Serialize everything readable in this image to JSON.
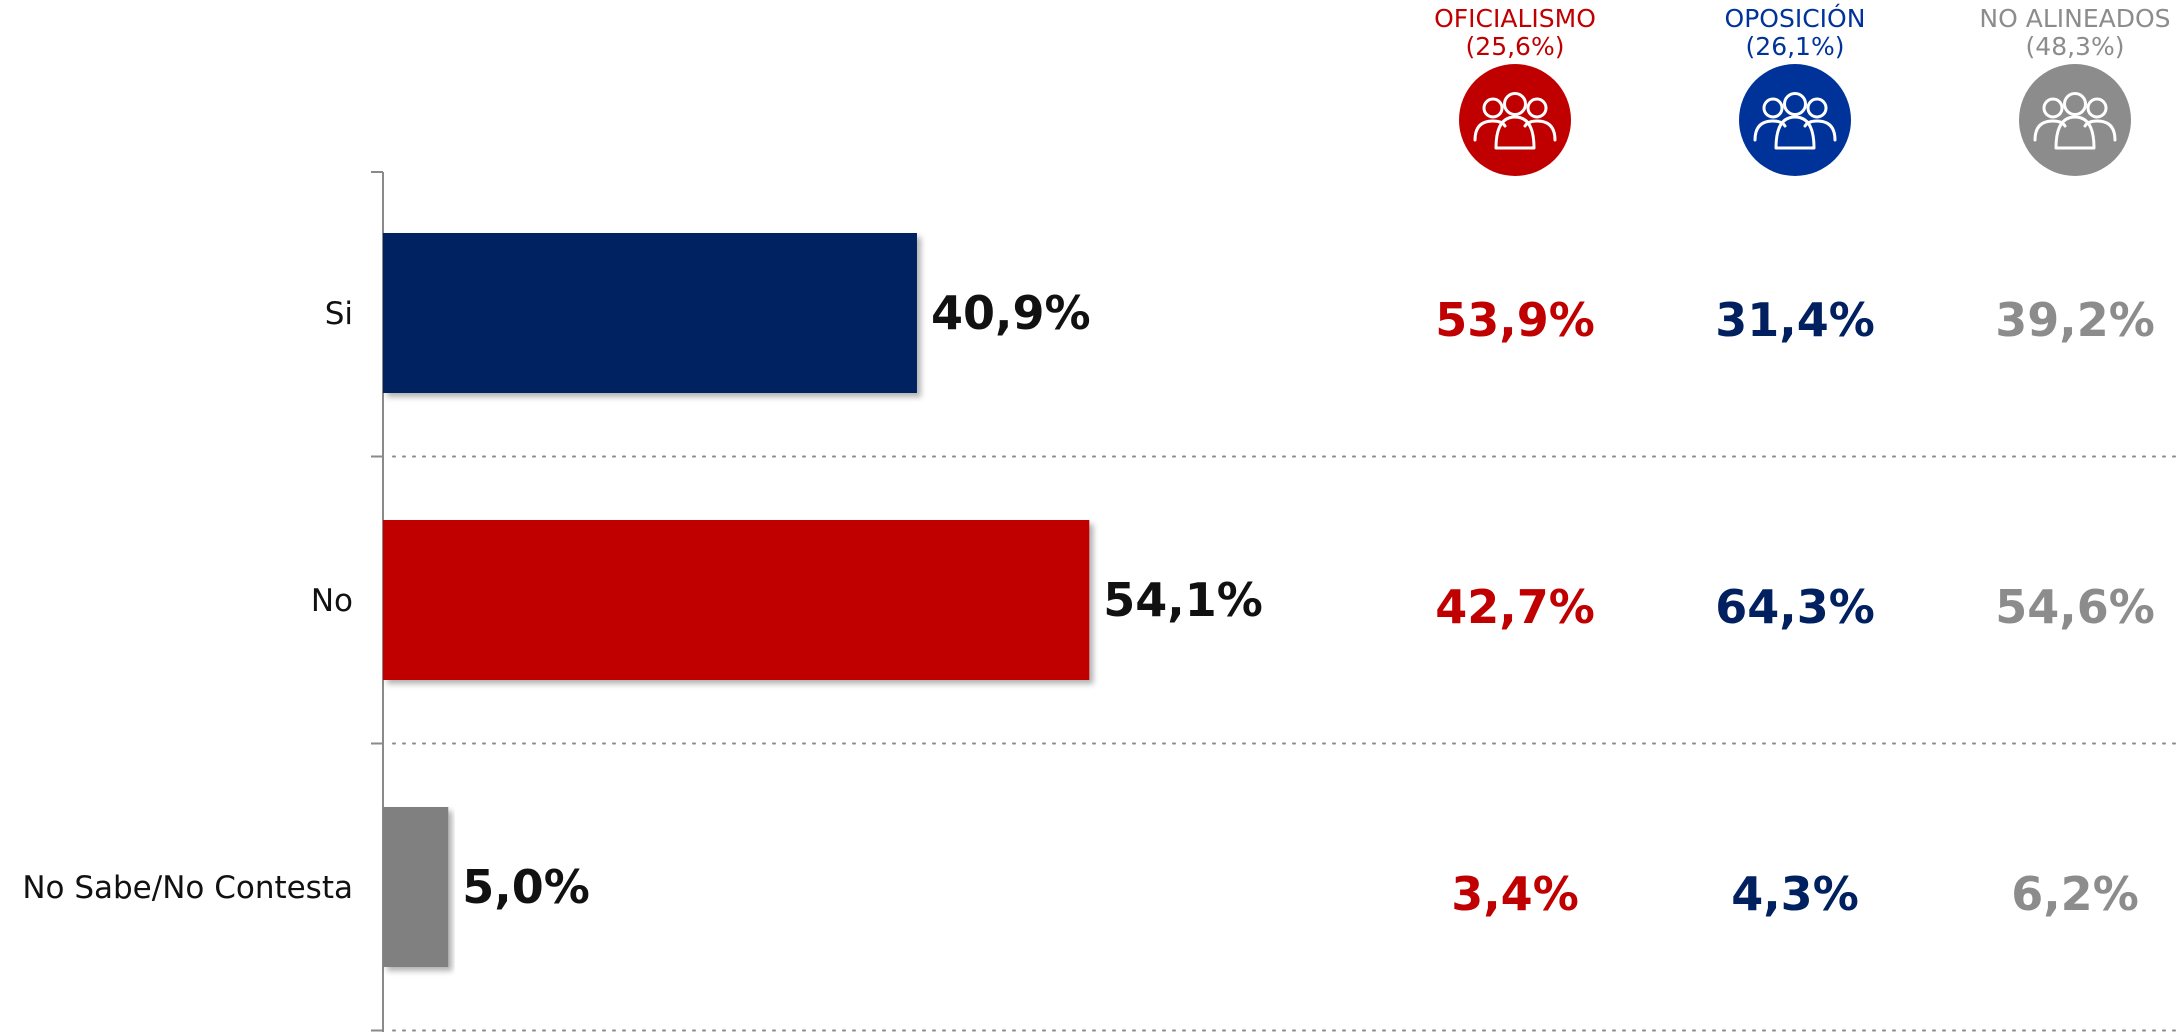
{
  "colors": {
    "si": "#002060",
    "no": "#c00000",
    "ns": "#808080",
    "oficialismo": "#c00000",
    "oposicion": "#003399",
    "no_alineados": "#8c8c8c",
    "oposicion_values": "#002060"
  },
  "chart_data": {
    "type": "bar",
    "orientation": "horizontal",
    "categories": [
      "Si",
      "No",
      "No Sabe/No Contesta"
    ],
    "values": [
      40.9,
      54.1,
      5.0
    ],
    "value_labels": [
      "40,9%",
      "54,1%",
      "5,0%"
    ],
    "xlim": [
      0,
      100
    ],
    "grid": false,
    "segments": [
      {
        "name": "OFICIALISMO",
        "share": "(25,6%)",
        "icon": "people-group-icon",
        "color_key": "oficialismo",
        "values": [
          53.9,
          42.7,
          3.4
        ],
        "value_labels": [
          "53,9%",
          "42,7%",
          "3,4%"
        ]
      },
      {
        "name": "OPOSICIÓN",
        "share": "(26,1%)",
        "icon": "people-group-icon",
        "color_key": "oposicion",
        "values": [
          31.4,
          64.3,
          4.3
        ],
        "value_labels": [
          "31,4%",
          "64,3%",
          "4,3%"
        ]
      },
      {
        "name": "NO ALINEADOS",
        "share": "(48,3%)",
        "icon": "people-group-icon",
        "color_key": "no_alineados",
        "values": [
          39.2,
          54.6,
          6.2
        ],
        "value_labels": [
          "39,2%",
          "54,6%",
          "6,2%"
        ]
      }
    ]
  }
}
